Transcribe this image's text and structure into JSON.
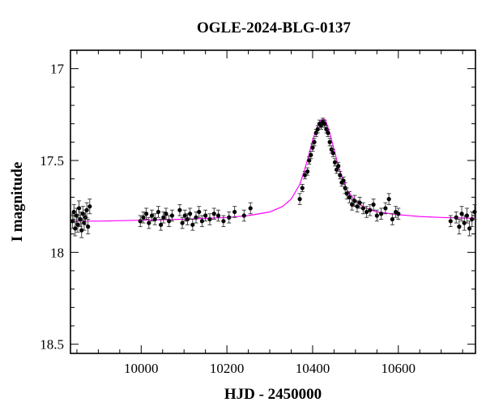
{
  "chart_data": {
    "type": "scatter",
    "title": "OGLE-2024-BLG-0137",
    "xlabel": "HJD - 2450000",
    "ylabel": "I magnitude",
    "xlim": [
      9835,
      10780
    ],
    "ylim": [
      18.55,
      16.9
    ],
    "y_inverted": true,
    "xticks": [
      10000,
      10200,
      10400,
      10600
    ],
    "yticks": [
      17,
      17.5,
      18,
      18.5
    ],
    "yticklabels": [
      "17",
      "17.5",
      "18",
      "18.5"
    ],
    "grid": false,
    "colors": {
      "points": "#000000",
      "model": "#ff00ff",
      "axes": "#000000"
    },
    "model": {
      "name": "",
      "x": [
        9835,
        9900,
        10000,
        10100,
        10200,
        10250,
        10300,
        10330,
        10350,
        10370,
        10380,
        10390,
        10400,
        10410,
        10420,
        10425,
        10430,
        10440,
        10450,
        10460,
        10470,
        10480,
        10500,
        10520,
        10550,
        10600,
        10650,
        10700,
        10780
      ],
      "y": [
        17.83,
        17.83,
        17.825,
        17.82,
        17.81,
        17.8,
        17.78,
        17.75,
        17.71,
        17.63,
        17.56,
        17.48,
        17.39,
        17.32,
        17.28,
        17.275,
        17.28,
        17.35,
        17.44,
        17.53,
        17.6,
        17.66,
        17.72,
        17.755,
        17.78,
        17.795,
        17.805,
        17.81,
        17.815
      ]
    },
    "series": [
      {
        "name": "",
        "x": [
          9840,
          9843,
          9846,
          9849,
          9852,
          9855,
          9858,
          9861,
          9864,
          9867,
          9870,
          9873,
          9876,
          9880,
          9998,
          10005,
          10012,
          10018,
          10025,
          10032,
          10040,
          10046,
          10052,
          10058,
          10065,
          10072,
          10090,
          10096,
          10102,
          10108,
          10114,
          10120,
          10128,
          10135,
          10142,
          10150,
          10160,
          10170,
          10180,
          10192,
          10205,
          10218,
          10240,
          10255,
          10370,
          10376,
          10382,
          10388,
          10392,
          10396,
          10400,
          10404,
          10408,
          10412,
          10416,
          10420,
          10424,
          10428,
          10432,
          10436,
          10440,
          10444,
          10448,
          10452,
          10456,
          10460,
          10464,
          10468,
          10472,
          10476,
          10480,
          10486,
          10492,
          10498,
          10504,
          10510,
          10518,
          10526,
          10534,
          10542,
          10550,
          10560,
          10570,
          10578,
          10586,
          10594,
          10600,
          10722,
          10735,
          10742,
          10748,
          10754,
          10760,
          10766,
          10772,
          10778
        ],
        "y": [
          17.83,
          17.78,
          17.87,
          17.8,
          17.85,
          17.76,
          17.82,
          17.88,
          17.79,
          17.84,
          17.81,
          17.77,
          17.86,
          17.75,
          17.83,
          17.81,
          17.79,
          17.84,
          17.8,
          17.82,
          17.78,
          17.85,
          17.81,
          17.79,
          17.83,
          17.8,
          17.77,
          17.84,
          17.8,
          17.82,
          17.79,
          17.85,
          17.81,
          17.78,
          17.83,
          17.8,
          17.82,
          17.79,
          17.8,
          17.83,
          17.81,
          17.78,
          17.8,
          17.76,
          17.71,
          17.65,
          17.58,
          17.56,
          17.5,
          17.47,
          17.43,
          17.4,
          17.35,
          17.33,
          17.3,
          17.31,
          17.29,
          17.3,
          17.33,
          17.35,
          17.4,
          17.44,
          17.46,
          17.51,
          17.55,
          17.53,
          17.58,
          17.62,
          17.61,
          17.65,
          17.68,
          17.7,
          17.74,
          17.72,
          17.75,
          17.73,
          17.76,
          17.78,
          17.77,
          17.74,
          17.8,
          17.79,
          17.76,
          17.71,
          17.82,
          17.78,
          17.79,
          17.83,
          17.81,
          17.86,
          17.79,
          17.84,
          17.8,
          17.87,
          17.82,
          17.78
        ],
        "yerr": [
          0.04,
          0.04,
          0.04,
          0.04,
          0.04,
          0.04,
          0.04,
          0.04,
          0.04,
          0.04,
          0.04,
          0.04,
          0.04,
          0.04,
          0.03,
          0.03,
          0.03,
          0.03,
          0.03,
          0.03,
          0.03,
          0.03,
          0.03,
          0.03,
          0.03,
          0.03,
          0.03,
          0.03,
          0.03,
          0.03,
          0.03,
          0.03,
          0.03,
          0.03,
          0.03,
          0.03,
          0.03,
          0.03,
          0.03,
          0.03,
          0.03,
          0.03,
          0.03,
          0.03,
          0.03,
          0.02,
          0.02,
          0.02,
          0.02,
          0.02,
          0.02,
          0.02,
          0.02,
          0.02,
          0.02,
          0.02,
          0.02,
          0.02,
          0.02,
          0.02,
          0.02,
          0.02,
          0.02,
          0.02,
          0.02,
          0.02,
          0.02,
          0.02,
          0.02,
          0.03,
          0.03,
          0.03,
          0.03,
          0.03,
          0.03,
          0.03,
          0.03,
          0.03,
          0.03,
          0.03,
          0.03,
          0.03,
          0.03,
          0.03,
          0.03,
          0.03,
          0.03,
          0.03,
          0.03,
          0.04,
          0.04,
          0.04,
          0.04,
          0.04,
          0.04,
          0.04
        ]
      }
    ]
  }
}
